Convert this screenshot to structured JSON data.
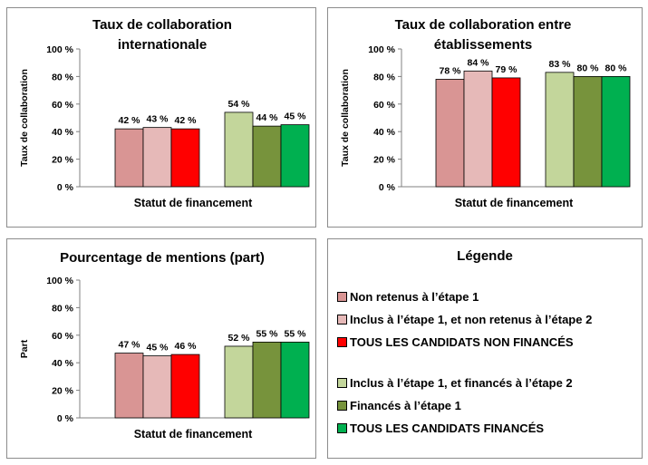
{
  "chart_data": [
    {
      "type": "bar",
      "title": [
        "Taux de collaboration",
        "internationale"
      ],
      "ylabel": "Taux de collaboration",
      "xlabel": "Statut de financement",
      "ylim": [
        0,
        100
      ],
      "yticks": [
        "0 %",
        "20 %",
        "40 %",
        "60 %",
        "80 %",
        "100 %"
      ],
      "groups": [
        {
          "values": [
            42,
            43,
            42
          ],
          "labels": [
            "42 %",
            "43 %",
            "42 %"
          ]
        },
        {
          "values": [
            54,
            44,
            45
          ],
          "labels": [
            "54 %",
            "44 %",
            "45 %"
          ]
        }
      ]
    },
    {
      "type": "bar",
      "title": [
        "Taux de collaboration  entre",
        "établissements"
      ],
      "ylabel": "Taux de collaboration",
      "xlabel": "Statut de financement",
      "ylim": [
        0,
        100
      ],
      "yticks": [
        "0 %",
        "20 %",
        "40 %",
        "60 %",
        "80 %",
        "100 %"
      ],
      "groups": [
        {
          "values": [
            78,
            84,
            79
          ],
          "labels": [
            "78 %",
            "84 %",
            "79 %"
          ]
        },
        {
          "values": [
            83,
            80,
            80
          ],
          "labels": [
            "83 %",
            "80 %",
            "80 %"
          ]
        }
      ]
    },
    {
      "type": "bar",
      "title": [
        "Pourcentage de mentions (part)"
      ],
      "ylabel": "Part",
      "xlabel": "Statut de financement",
      "ylim": [
        0,
        100
      ],
      "yticks": [
        "0 %",
        "20 %",
        "40 %",
        "60 %",
        "80 %",
        "100 %"
      ],
      "groups": [
        {
          "values": [
            47,
            45,
            46
          ],
          "labels": [
            "47 %",
            "45 %",
            "46 %"
          ]
        },
        {
          "values": [
            52,
            55,
            55
          ],
          "labels": [
            "52 %",
            "55 %",
            "55 %"
          ]
        }
      ]
    }
  ],
  "colors": [
    "#d99594",
    "#e6b9b8",
    "#ff0000",
    "#c3d69b",
    "#77933c",
    "#00b050"
  ],
  "legend": {
    "title": "Légende",
    "items": [
      {
        "label": "Non retenus à l’étape 1",
        "color": "#d99594"
      },
      {
        "label": "Inclus à l’étape 1, et non retenus à l’étape 2",
        "color": "#e6b9b8"
      },
      {
        "label": "TOUS LES CANDIDATS NON FINANCÉS",
        "color": "#ff0000"
      },
      {
        "label": "Inclus à l’étape 1, et financés à l’étape 2",
        "color": "#c3d69b"
      },
      {
        "label": "Financés à l’étape 1",
        "color": "#77933c"
      },
      {
        "label": "TOUS LES CANDIDATS FINANCÉS",
        "color": "#00b050"
      }
    ]
  }
}
